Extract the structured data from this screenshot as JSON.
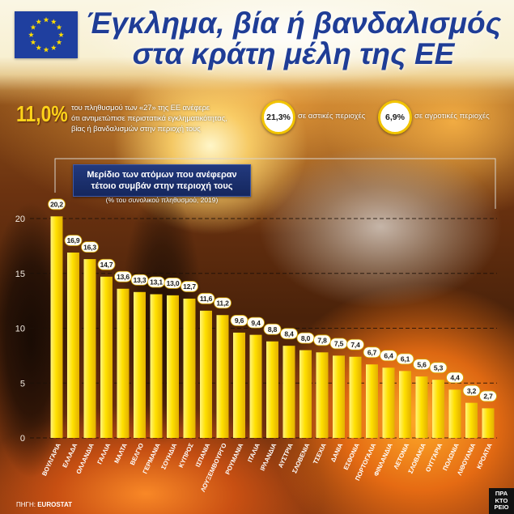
{
  "header": {
    "title_line1": "Έγκλημα, βία ή βανδαλισμός",
    "title_line2": "στα κράτη μέλη της ΕΕ",
    "flag_icon": "eu-flag-icon"
  },
  "stats": {
    "eu_total": {
      "value": "11,0%",
      "lines": [
        "του πληθυσμού των «27» της ΕΕ ανέφερε",
        "ότι αντιμετώπισε περιστατικά εγκληματικότητας,",
        "βίας ή βανδαλισμών στην περιοχή τους"
      ]
    },
    "urban": {
      "value": "21,3%",
      "label": "σε αστικές περιοχές"
    },
    "rural": {
      "value": "6,9%",
      "label": "σε αγροτικές περιοχές"
    }
  },
  "chart_data": {
    "type": "bar",
    "title_lines": [
      "Μερίδιο των ατόμων που ανέφεραν",
      "τέτοιο συμβάν στην περιοχή τους"
    ],
    "subtitle": "(% του συνολικού πληθυσμού, 2019)",
    "categories": [
      "ΒΟΥΛΓΑΡΙΑ",
      "ΕΛΛΑΔΑ",
      "ΟΛΛΑΝΔΙΑ",
      "ΓΑΛΛΙΑ",
      "ΜΑΛΤΑ",
      "ΒΕΛΓΙΟ",
      "ΓΕΡΜΑΝΙΑ",
      "ΣΟΥΗΔΙΑ",
      "ΚΥΠΡΟΣ",
      "ΙΣΠΑΝΙΑ",
      "ΛΟΥΞΕΜΒΟΥΡΓΟ",
      "ΡΟΥΜΑΝΙΑ",
      "ΙΤΑΛΙΑ",
      "ΙΡΛΑΝΔΙΑ",
      "ΑΥΣΤΡΙΑ",
      "ΣΛΟΒΕΝΙΑ",
      "ΤΣΕΧΙΑ",
      "ΔΑΝΙΑ",
      "ΕΣΘΟΝΙΑ",
      "ΠΟΡΤΟΓΑΛΙΑ",
      "ΦΙΝΛΑΝΔΙΑ",
      "ΛΕΤΟΝΙΑ",
      "ΣΛΟΒΑΚΙΑ",
      "ΟΥΓΓΑΡΙΑ",
      "ΠΟΛΩΝΙΑ",
      "ΛΙΘΟΥΑΝΙΑ",
      "ΚΡΟΑΤΙΑ"
    ],
    "values": [
      20.2,
      16.9,
      16.3,
      14.7,
      13.6,
      13.3,
      13.1,
      13.0,
      12.7,
      11.6,
      11.2,
      9.6,
      9.4,
      8.8,
      8.4,
      8.0,
      7.8,
      7.5,
      7.4,
      6.7,
      6.4,
      6.1,
      5.6,
      5.3,
      4.4,
      3.2,
      2.7
    ],
    "value_labels": [
      "20,2",
      "16,9",
      "16,3",
      "14,7",
      "13,6",
      "13,3",
      "13,1",
      "13,0",
      "12,7",
      "11,6",
      "11,2",
      "9,6",
      "9,4",
      "8,8",
      "8,4",
      "8,0",
      "7,8",
      "7,5",
      "7,4",
      "6,7",
      "6,4",
      "6,1",
      "5,6",
      "5,3",
      "4,4",
      "3,2",
      "2,7"
    ],
    "y_ticks": [
      0,
      5,
      10,
      15,
      20
    ],
    "ylim": [
      0,
      20
    ],
    "grid": true,
    "bar_color": "#ffdd00"
  },
  "footer": {
    "source_label": "ΠΗΓΗ:",
    "source_name": "EUROSTAT",
    "logo_lines": [
      "ΠΡΑ",
      "ΚΤΟ",
      "ΡΕΙΟ"
    ]
  },
  "colors": {
    "title": "#1f3d96",
    "accent_yellow": "#ffd21a",
    "subtitle_box": "#1b2f6e",
    "flag_blue": "#1f3f9f",
    "flag_star": "#ffdd00"
  }
}
